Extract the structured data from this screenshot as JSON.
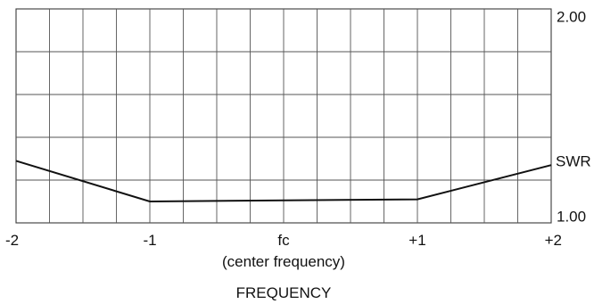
{
  "chart_data": {
    "type": "line",
    "title": "",
    "xlabel": "FREQUENCY",
    "ylabel": "SWR",
    "xlim": [
      -2,
      2
    ],
    "ylim": [
      1.0,
      2.0
    ],
    "grid": true,
    "x_ticks": [
      {
        "value": -2,
        "label": "-2"
      },
      {
        "value": -1,
        "label": "-1"
      },
      {
        "value": 0,
        "label": "fc",
        "sublabel": "(center frequency)"
      },
      {
        "value": 1,
        "label": "+1"
      },
      {
        "value": 2,
        "label": "+2"
      }
    ],
    "y_ticks": [
      {
        "value": 2.0,
        "label": "2.00"
      },
      {
        "value": 1.0,
        "label": "1.00"
      }
    ],
    "series": [
      {
        "x": [
          -2,
          -1,
          1,
          2
        ],
        "y": [
          1.29,
          1.1,
          1.11,
          1.27
        ]
      }
    ]
  }
}
